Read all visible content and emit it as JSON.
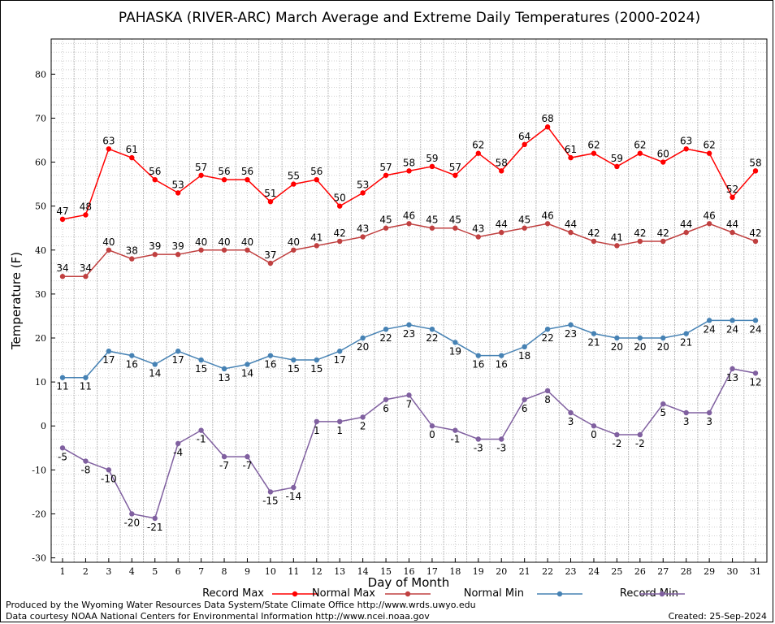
{
  "chart_data": {
    "type": "line",
    "title": "PAHASKA (RIVER-ARC) March Average and Extreme Daily Temperatures (2000-2024)",
    "xlabel": "Day of Month",
    "ylabel": "Temperature (F)",
    "ylim": [
      -31,
      88
    ],
    "yticks": [
      -30,
      -20,
      -10,
      0,
      10,
      20,
      30,
      40,
      50,
      60,
      70,
      80
    ],
    "x": [
      1,
      2,
      3,
      4,
      5,
      6,
      7,
      8,
      9,
      10,
      11,
      12,
      13,
      14,
      15,
      16,
      17,
      18,
      19,
      20,
      21,
      22,
      23,
      24,
      25,
      26,
      27,
      28,
      29,
      30,
      31
    ],
    "grid": true,
    "series": [
      {
        "name": "Record Max",
        "color": "#ff0000",
        "label_pos": "above",
        "values": [
          47,
          48,
          63,
          61,
          56,
          53,
          57,
          56,
          56,
          51,
          55,
          56,
          50,
          53,
          57,
          58,
          59,
          57,
          62,
          58,
          64,
          68,
          61,
          62,
          59,
          62,
          60,
          63,
          62,
          52,
          58
        ]
      },
      {
        "name": "Normal Max",
        "color": "#c04040",
        "label_pos": "above",
        "values": [
          34,
          34,
          40,
          38,
          39,
          39,
          40,
          40,
          40,
          37,
          40,
          41,
          42,
          43,
          45,
          46,
          45,
          45,
          43,
          44,
          45,
          46,
          44,
          42,
          41,
          42,
          42,
          44,
          46,
          44,
          42
        ]
      },
      {
        "name": "Normal Min",
        "color": "#4682b4",
        "label_pos": "below",
        "values": [
          11,
          11,
          17,
          16,
          14,
          17,
          15,
          13,
          14,
          16,
          15,
          15,
          17,
          20,
          22,
          23,
          22,
          19,
          16,
          16,
          18,
          22,
          23,
          21,
          20,
          20,
          20,
          21,
          24,
          24,
          24
        ]
      },
      {
        "name": "Record Min",
        "color": "#8060a0",
        "label_pos": "below",
        "values": [
          -5,
          -8,
          -10,
          -20,
          -21,
          -4,
          -1,
          -7,
          -7,
          -15,
          -14,
          1,
          1,
          2,
          6,
          7,
          0,
          -1,
          -3,
          -3,
          6,
          8,
          3,
          0,
          -2,
          -2,
          5,
          3,
          3,
          13,
          12
        ]
      }
    ],
    "legend_placement": "bottom"
  },
  "footer": {
    "line1": "Produced by the Wyoming Water Resources Data System/State Climate Office http://www.wrds.uwyo.edu",
    "line2": "Data courtesy NOAA National Centers for Environmental Information http://www.ncei.noaa.gov",
    "created": "Created:  25-Sep-2024"
  }
}
